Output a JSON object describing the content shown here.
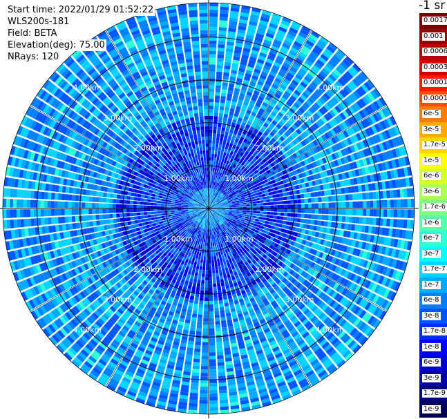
{
  "info": {
    "start_time": "Start time: 2022/01/29 01:52:22",
    "instrument": "WLS200s-181",
    "field": "Field: BETA",
    "elevation": "Elevation(deg): 75.00",
    "nrays": "NRays: 120"
  },
  "colorbar": {
    "unit_label": "-1 sr",
    "levels": [
      {
        "label": "0.0017",
        "color": "#7a0000"
      },
      {
        "label": "0.001",
        "color": "#9a0000"
      },
      {
        "label": "0.0006",
        "color": "#b40000"
      },
      {
        "label": "0.0003",
        "color": "#d40000"
      },
      {
        "label": "0.00017",
        "color": "#ff1800"
      },
      {
        "label": "0.0001",
        "color": "#ff4a00"
      },
      {
        "label": "6e-5",
        "color": "#ff7a00"
      },
      {
        "label": "3e-5",
        "color": "#ffaa00"
      },
      {
        "label": "1.7e-5",
        "color": "#ffd400"
      },
      {
        "label": "1e-5",
        "color": "#ffff00"
      },
      {
        "label": "6e-6",
        "color": "#d4ff2a"
      },
      {
        "label": "3e-6",
        "color": "#aaff55"
      },
      {
        "label": "1.7e-6",
        "color": "#7fff7f"
      },
      {
        "label": "1e-6",
        "color": "#55ffaa"
      },
      {
        "label": "6e-7",
        "color": "#2affd4"
      },
      {
        "label": "3e-7",
        "color": "#00ffff"
      },
      {
        "label": "1.7e-7",
        "color": "#00d4ff"
      },
      {
        "label": "1e-7",
        "color": "#00aaff"
      },
      {
        "label": "6e-8",
        "color": "#007fff"
      },
      {
        "label": "3e-8",
        "color": "#0055ff"
      },
      {
        "label": "1.7e-8",
        "color": "#002aff"
      },
      {
        "label": "1e-8",
        "color": "#0000ff"
      },
      {
        "label": "6e-9",
        "color": "#0000d4"
      },
      {
        "label": "3e-9",
        "color": "#0000aa"
      },
      {
        "label": "1.7e-9",
        "color": "#00007f"
      },
      {
        "label": "1e-9",
        "color": "#000055"
      }
    ]
  },
  "chart_data": {
    "type": "heatmap",
    "projection": "polar PPI",
    "n_rays": 120,
    "range_rings_km": [
      1,
      2,
      3,
      4
    ],
    "ring_labels": [
      "1.00km",
      "2.00km",
      "3.00km",
      "4.00km"
    ],
    "max_range_km": 4.8,
    "dominant_value_range": [
      "1e-8",
      "1e-7"
    ],
    "colors": {
      "background": "#ffffff",
      "ray_separator": "#ffffff",
      "ring_color": "#000000",
      "ring_label_color": "#ffffff"
    },
    "grid": true
  }
}
